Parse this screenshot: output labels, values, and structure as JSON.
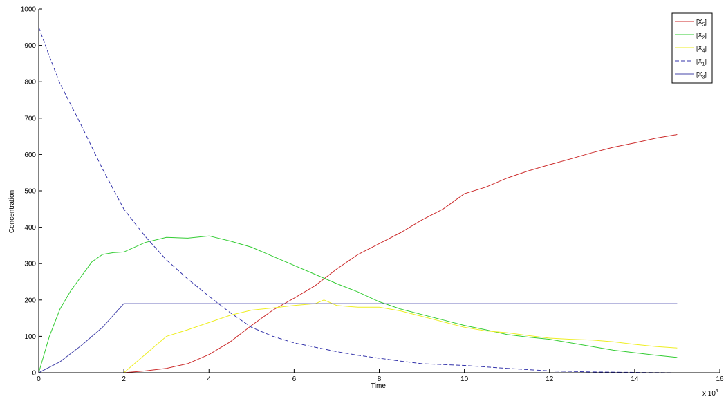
{
  "chart_data": {
    "type": "line",
    "xlabel": "Time",
    "ylabel": "Concentration",
    "x_exponent_label": "x 10",
    "x_exponent_power": "4",
    "xlim": [
      0,
      16
    ],
    "ylim": [
      0,
      1000
    ],
    "xticks": [
      0,
      2,
      4,
      6,
      8,
      10,
      12,
      14,
      16
    ],
    "yticks": [
      0,
      100,
      200,
      300,
      400,
      500,
      600,
      700,
      800,
      900,
      1000
    ],
    "grid": false,
    "legend_position": "top-right",
    "series": [
      {
        "name": "[X5]",
        "legend_base": "[X",
        "legend_sub": "5",
        "legend_end": "]",
        "color": "#cc2a2a",
        "dash": "solid",
        "x": [
          2,
          2.5,
          3,
          3.5,
          4,
          4.5,
          5,
          5.5,
          6,
          6.5,
          7,
          7.5,
          8,
          8.5,
          9,
          9.5,
          10,
          10.5,
          11,
          11.5,
          12,
          12.5,
          13,
          13.5,
          14,
          14.5,
          15
        ],
        "y": [
          0,
          5,
          12,
          25,
          50,
          85,
          130,
          172,
          205,
          240,
          285,
          325,
          355,
          385,
          420,
          450,
          492,
          510,
          535,
          555,
          572,
          588,
          605,
          620,
          632,
          645,
          655
        ]
      },
      {
        "name": "[X2]",
        "legend_base": "[X",
        "legend_sub": "2",
        "legend_end": "]",
        "color": "#33cc33",
        "dash": "solid",
        "x": [
          0,
          0.25,
          0.5,
          0.75,
          1,
          1.25,
          1.5,
          1.75,
          2,
          2.5,
          3,
          3.5,
          4,
          4.5,
          5,
          5.5,
          6,
          6.5,
          7,
          7.5,
          8,
          8.5,
          9,
          9.5,
          10,
          10.5,
          11,
          11.5,
          12,
          12.5,
          13,
          13.5,
          14,
          14.5,
          15
        ],
        "y": [
          0,
          100,
          175,
          225,
          265,
          305,
          325,
          330,
          332,
          358,
          372,
          370,
          376,
          362,
          345,
          320,
          295,
          270,
          245,
          222,
          195,
          175,
          160,
          145,
          130,
          118,
          105,
          98,
          92,
          82,
          72,
          62,
          55,
          48,
          42
        ]
      },
      {
        "name": "[X4]",
        "legend_base": "[X",
        "legend_sub": "4",
        "legend_end": "]",
        "color": "#eeee22",
        "dash": "solid",
        "x": [
          0,
          2,
          2.5,
          3,
          3.5,
          4,
          4.5,
          5,
          5.5,
          6,
          6.5,
          6.7,
          7,
          7.5,
          8,
          8.5,
          9,
          9.5,
          10,
          10.5,
          11,
          11.5,
          12,
          12.5,
          13,
          13.5,
          14,
          14.5,
          15
        ],
        "y": [
          0,
          0,
          50,
          100,
          118,
          138,
          158,
          172,
          178,
          185,
          190,
          200,
          185,
          180,
          180,
          170,
          155,
          140,
          125,
          115,
          110,
          102,
          95,
          92,
          90,
          85,
          78,
          72,
          68
        ]
      },
      {
        "name": "[X1]",
        "legend_base": "[X",
        "legend_sub": "1",
        "legend_end": "]",
        "color": "#3333aa",
        "dash": "dashed",
        "x": [
          0,
          0.25,
          0.5,
          1,
          1.5,
          2,
          2.5,
          3,
          3.5,
          4,
          4.5,
          5,
          5.5,
          6,
          6.5,
          7,
          7.5,
          8,
          8.5,
          9,
          10,
          11,
          12,
          13,
          14,
          15
        ],
        "y": [
          950,
          870,
          795,
          680,
          560,
          450,
          375,
          310,
          258,
          210,
          165,
          125,
          100,
          82,
          70,
          58,
          48,
          40,
          32,
          25,
          20,
          12,
          5,
          2,
          1,
          0
        ]
      },
      {
        "name": "[X3]",
        "legend_base": "[X",
        "legend_sub": "3",
        "legend_end": "]",
        "color": "#4444aa",
        "dash": "solid",
        "x": [
          0,
          0.5,
          1,
          1.5,
          2,
          15
        ],
        "y": [
          0,
          30,
          75,
          125,
          190,
          190
        ]
      }
    ]
  }
}
